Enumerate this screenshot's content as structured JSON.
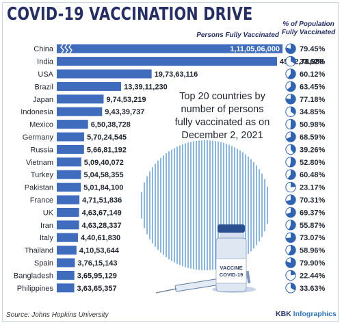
{
  "title": "COVID-19 VACCINATION DRIVE",
  "series_label": "Persons Fully Vaccinated",
  "pct_header_line1": "% of Population",
  "pct_header_line2": "Fully Vaccinated",
  "note": "Top 20 countries by number of persons fully vaccinated as on December 2, 2021",
  "source": "Source: Johns Hopkins University",
  "credit_a": "KBK ",
  "credit_b": "Infographics",
  "colors": {
    "bar": "#3f6cbd",
    "title": "#252f66",
    "pie": "#2f63b4",
    "globe": "#3a8ad9"
  },
  "chart_data": {
    "type": "bar",
    "orientation": "horizontal",
    "title": "COVID-19 VACCINATION DRIVE",
    "series": [
      {
        "name": "Persons Fully Vaccinated",
        "values": [
          1110506000,
          458278988,
          197363116,
          133911230,
          97453219,
          94339737,
          65038728,
          57024545,
          56681192,
          50940072,
          50458355,
          50184100,
          47151836,
          46367149,
          46328337,
          44061830,
          41053644,
          37615143,
          36595129,
          36365357
        ]
      }
    ],
    "categories": [
      "China",
      "India",
      "USA",
      "Brazil",
      "Japan",
      "Indonesia",
      "Mexico",
      "Germany",
      "Russia",
      "Vietnam",
      "Turkey",
      "Pakistan",
      "France",
      "UK",
      "Iran",
      "Italy",
      "Thailand",
      "Spain",
      "Bangladesh",
      "Philippines"
    ],
    "value_labels": [
      "1,11,05,06,000",
      "45,82,78,988",
      "19,73,63,116",
      "13,39,11,230",
      "9,74,53,219",
      "9,43,39,737",
      "6,50,38,728",
      "5,70,24,545",
      "5,66,81,192",
      "5,09,40,072",
      "5,04,58,355",
      "5,01,84,100",
      "4,71,51,836",
      "4,63,67,149",
      "4,63,28,337",
      "4,40,61,830",
      "4,10,53,644",
      "3,76,15,143",
      "3,65,95,129",
      "3,63,65,357"
    ],
    "pct_population_fully_vaccinated": [
      79.45,
      33.62,
      60.12,
      63.45,
      77.18,
      34.85,
      50.98,
      68.59,
      39.26,
      52.8,
      60.48,
      23.17,
      70.31,
      69.37,
      55.87,
      73.07,
      58.96,
      79.9,
      22.44,
      33.63
    ],
    "pct_labels": [
      "79.45%",
      "33.62%",
      "60.12%",
      "63.45%",
      "77.18%",
      "34.85%",
      "50.98%",
      "68.59%",
      "39.26%",
      "52.80%",
      "60.48%",
      "23.17%",
      "70.31%",
      "69.37%",
      "55.87%",
      "73.07%",
      "58.96%",
      "79.90%",
      "22.44%",
      "33.63%"
    ],
    "axis_break_on_first_bar": true
  }
}
